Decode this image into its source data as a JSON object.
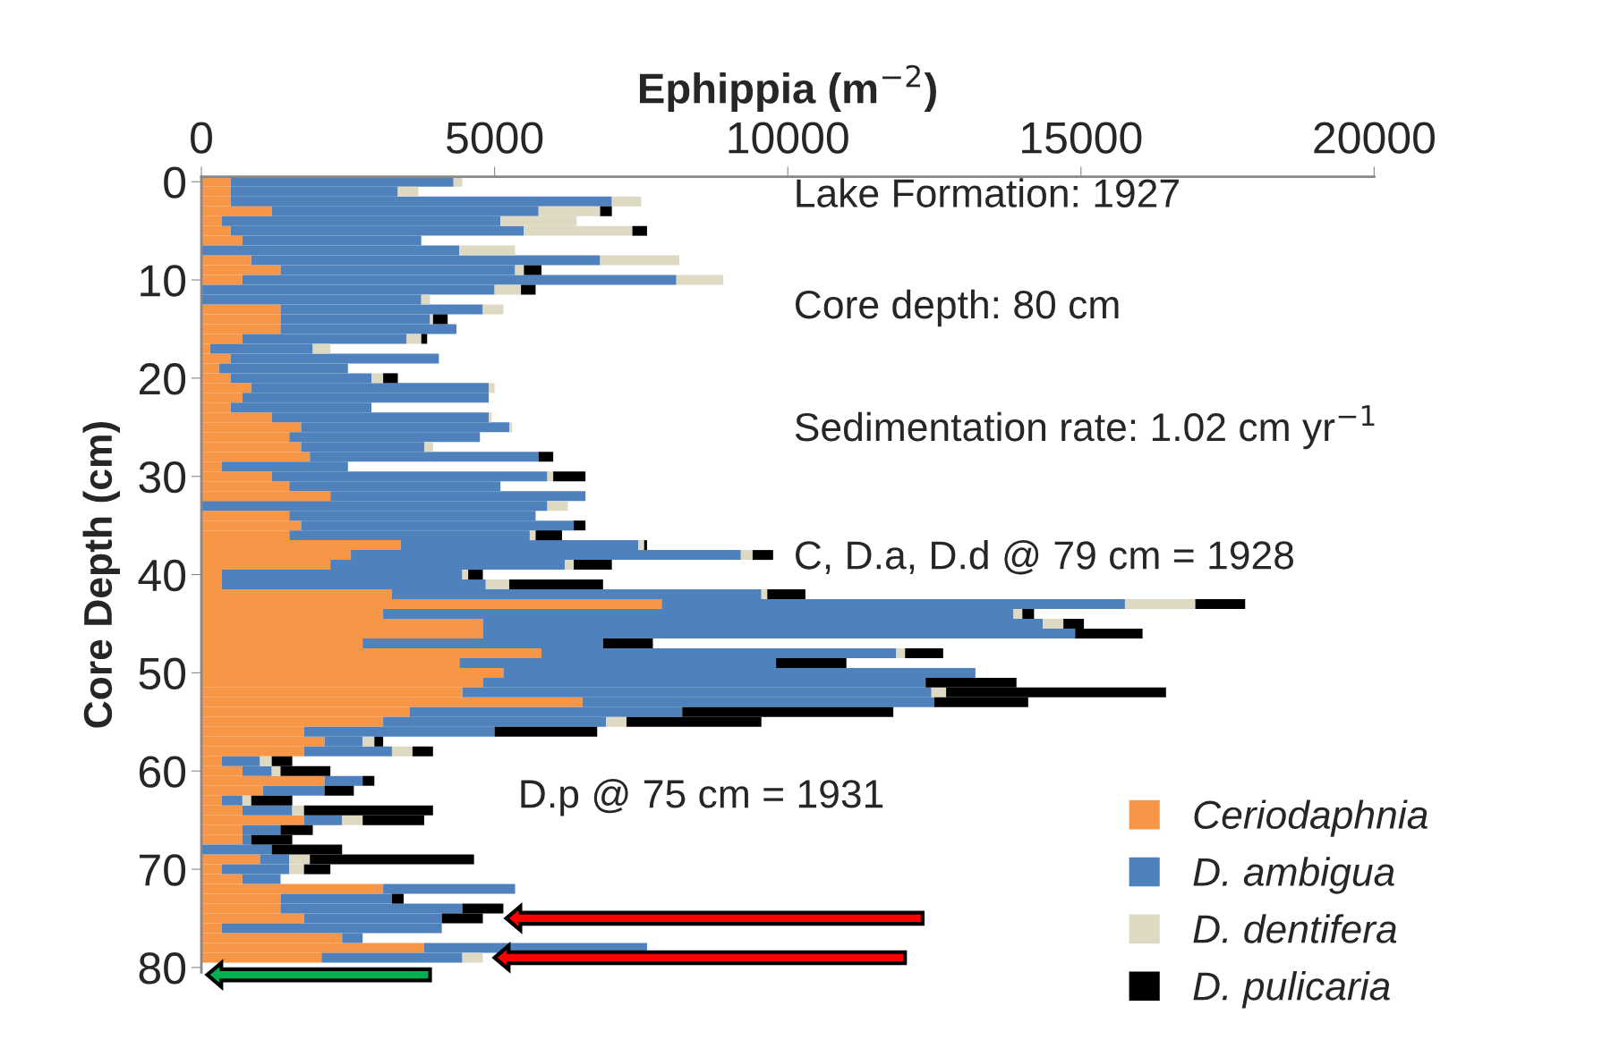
{
  "chart_data": {
    "type": "bar",
    "orientation": "horizontal",
    "stacked": true,
    "title": "Ephippia (m$^{−2}$)",
    "ylabel": "Core Depth (cm)",
    "x": [
      0,
      1,
      2,
      3,
      4,
      5,
      6,
      7,
      8,
      9,
      10,
      11,
      12,
      13,
      14,
      15,
      16,
      17,
      18,
      19,
      20,
      21,
      22,
      23,
      24,
      25,
      26,
      27,
      28,
      29,
      30,
      31,
      32,
      33,
      34,
      35,
      36,
      37,
      38,
      39,
      40,
      41,
      42,
      43,
      44,
      45,
      46,
      47,
      48,
      49,
      50,
      51,
      52,
      53,
      54,
      55,
      56,
      57,
      58,
      59,
      60,
      61,
      62,
      63,
      64,
      65,
      66,
      67,
      68,
      69,
      70,
      71,
      72,
      73,
      74,
      75,
      76,
      77,
      78,
      79
    ],
    "xlim": [
      0,
      20000
    ],
    "xticks": [
      0,
      5000,
      10000,
      15000,
      20000
    ],
    "ylim": [
      80.5,
      -0.5
    ],
    "yticks": [
      0,
      10,
      20,
      30,
      40,
      50,
      60,
      70,
      80
    ],
    "grid": false,
    "legend": "bottom right",
    "series": [
      {
        "name": "Ceriodaphnia",
        "color": "#f79646",
        "values": [
          500,
          500,
          500,
          1200,
          350,
          500,
          700,
          null,
          850,
          1350,
          700,
          null,
          null,
          1350,
          1350,
          1350,
          700,
          150,
          500,
          300,
          500,
          850,
          700,
          500,
          1200,
          1700,
          1500,
          1700,
          1850,
          350,
          1200,
          1500,
          2200,
          null,
          1500,
          1700,
          1500,
          3400,
          2550,
          2200,
          350,
          350,
          3250,
          7850,
          3100,
          4800,
          4800,
          2750,
          5800,
          4400,
          5150,
          4800,
          4450,
          6500,
          3550,
          3100,
          1750,
          2100,
          1750,
          350,
          700,
          2100,
          1050,
          350,
          700,
          1750,
          700,
          700,
          null,
          1000,
          350,
          700,
          3100,
          1350,
          1350,
          1750,
          350,
          2400,
          3800,
          2050
        ]
      },
      {
        "name": "D. ambigua",
        "color": "#4f81bd",
        "values": [
          3800,
          2850,
          6500,
          4550,
          4750,
          5000,
          3050,
          4400,
          5950,
          4000,
          7400,
          5000,
          3750,
          3450,
          2550,
          3000,
          2800,
          1750,
          3550,
          2200,
          2400,
          4050,
          4200,
          2400,
          3700,
          3550,
          3250,
          2100,
          3900,
          2150,
          4700,
          3600,
          4350,
          5900,
          4200,
          4650,
          4100,
          4050,
          6650,
          4000,
          4100,
          4500,
          6300,
          7900,
          10750,
          9550,
          10100,
          4100,
          6050,
          5400,
          8050,
          7550,
          8000,
          6000,
          4650,
          3800,
          3250,
          650,
          1500,
          650,
          500,
          650,
          1050,
          350,
          850,
          650,
          650,
          150,
          1200,
          500,
          1150,
          650,
          2250,
          1900,
          3100,
          2350,
          3750,
          350,
          3800,
          2400
        ]
      },
      {
        "name": "D. dentifera",
        "color": "#ddd9c3",
        "values": [
          150,
          350,
          500,
          1050,
          1300,
          1850,
          null,
          950,
          1350,
          150,
          800,
          450,
          150,
          350,
          50,
          null,
          250,
          300,
          null,
          null,
          200,
          100,
          null,
          null,
          50,
          50,
          null,
          150,
          null,
          null,
          100,
          null,
          null,
          350,
          null,
          null,
          100,
          100,
          200,
          150,
          100,
          400,
          100,
          1200,
          150,
          350,
          null,
          null,
          150,
          null,
          null,
          null,
          250,
          null,
          null,
          350,
          null,
          200,
          350,
          200,
          150,
          null,
          null,
          150,
          200,
          350,
          null,
          null,
          null,
          350,
          250,
          null,
          null,
          null,
          null,
          null,
          null,
          null,
          null,
          350
        ]
      },
      {
        "name": "D. pulicaria",
        "color": "#000000",
        "values": [
          null,
          null,
          null,
          200,
          null,
          250,
          null,
          null,
          null,
          300,
          null,
          250,
          null,
          null,
          250,
          null,
          100,
          null,
          null,
          null,
          250,
          null,
          null,
          null,
          null,
          null,
          null,
          null,
          250,
          null,
          550,
          null,
          null,
          null,
          null,
          200,
          450,
          50,
          350,
          650,
          250,
          1600,
          650,
          850,
          200,
          350,
          1150,
          850,
          650,
          1200,
          null,
          1550,
          3750,
          1600,
          3600,
          2300,
          1750,
          150,
          350,
          350,
          850,
          200,
          500,
          700,
          2200,
          1050,
          550,
          700,
          1200,
          2800,
          450,
          null,
          null,
          200,
          700,
          700,
          null,
          null,
          null,
          null
        ]
      }
    ],
    "annotations": [
      "Lake Formation: 1927",
      "Core depth: 80 cm",
      "Sedimentation rate: 1.02 cm yr$^{−1}$",
      "C, D.a, D.d @ 79 cm = 1928",
      "D.p @ 75 cm = 1931"
    ]
  }
}
